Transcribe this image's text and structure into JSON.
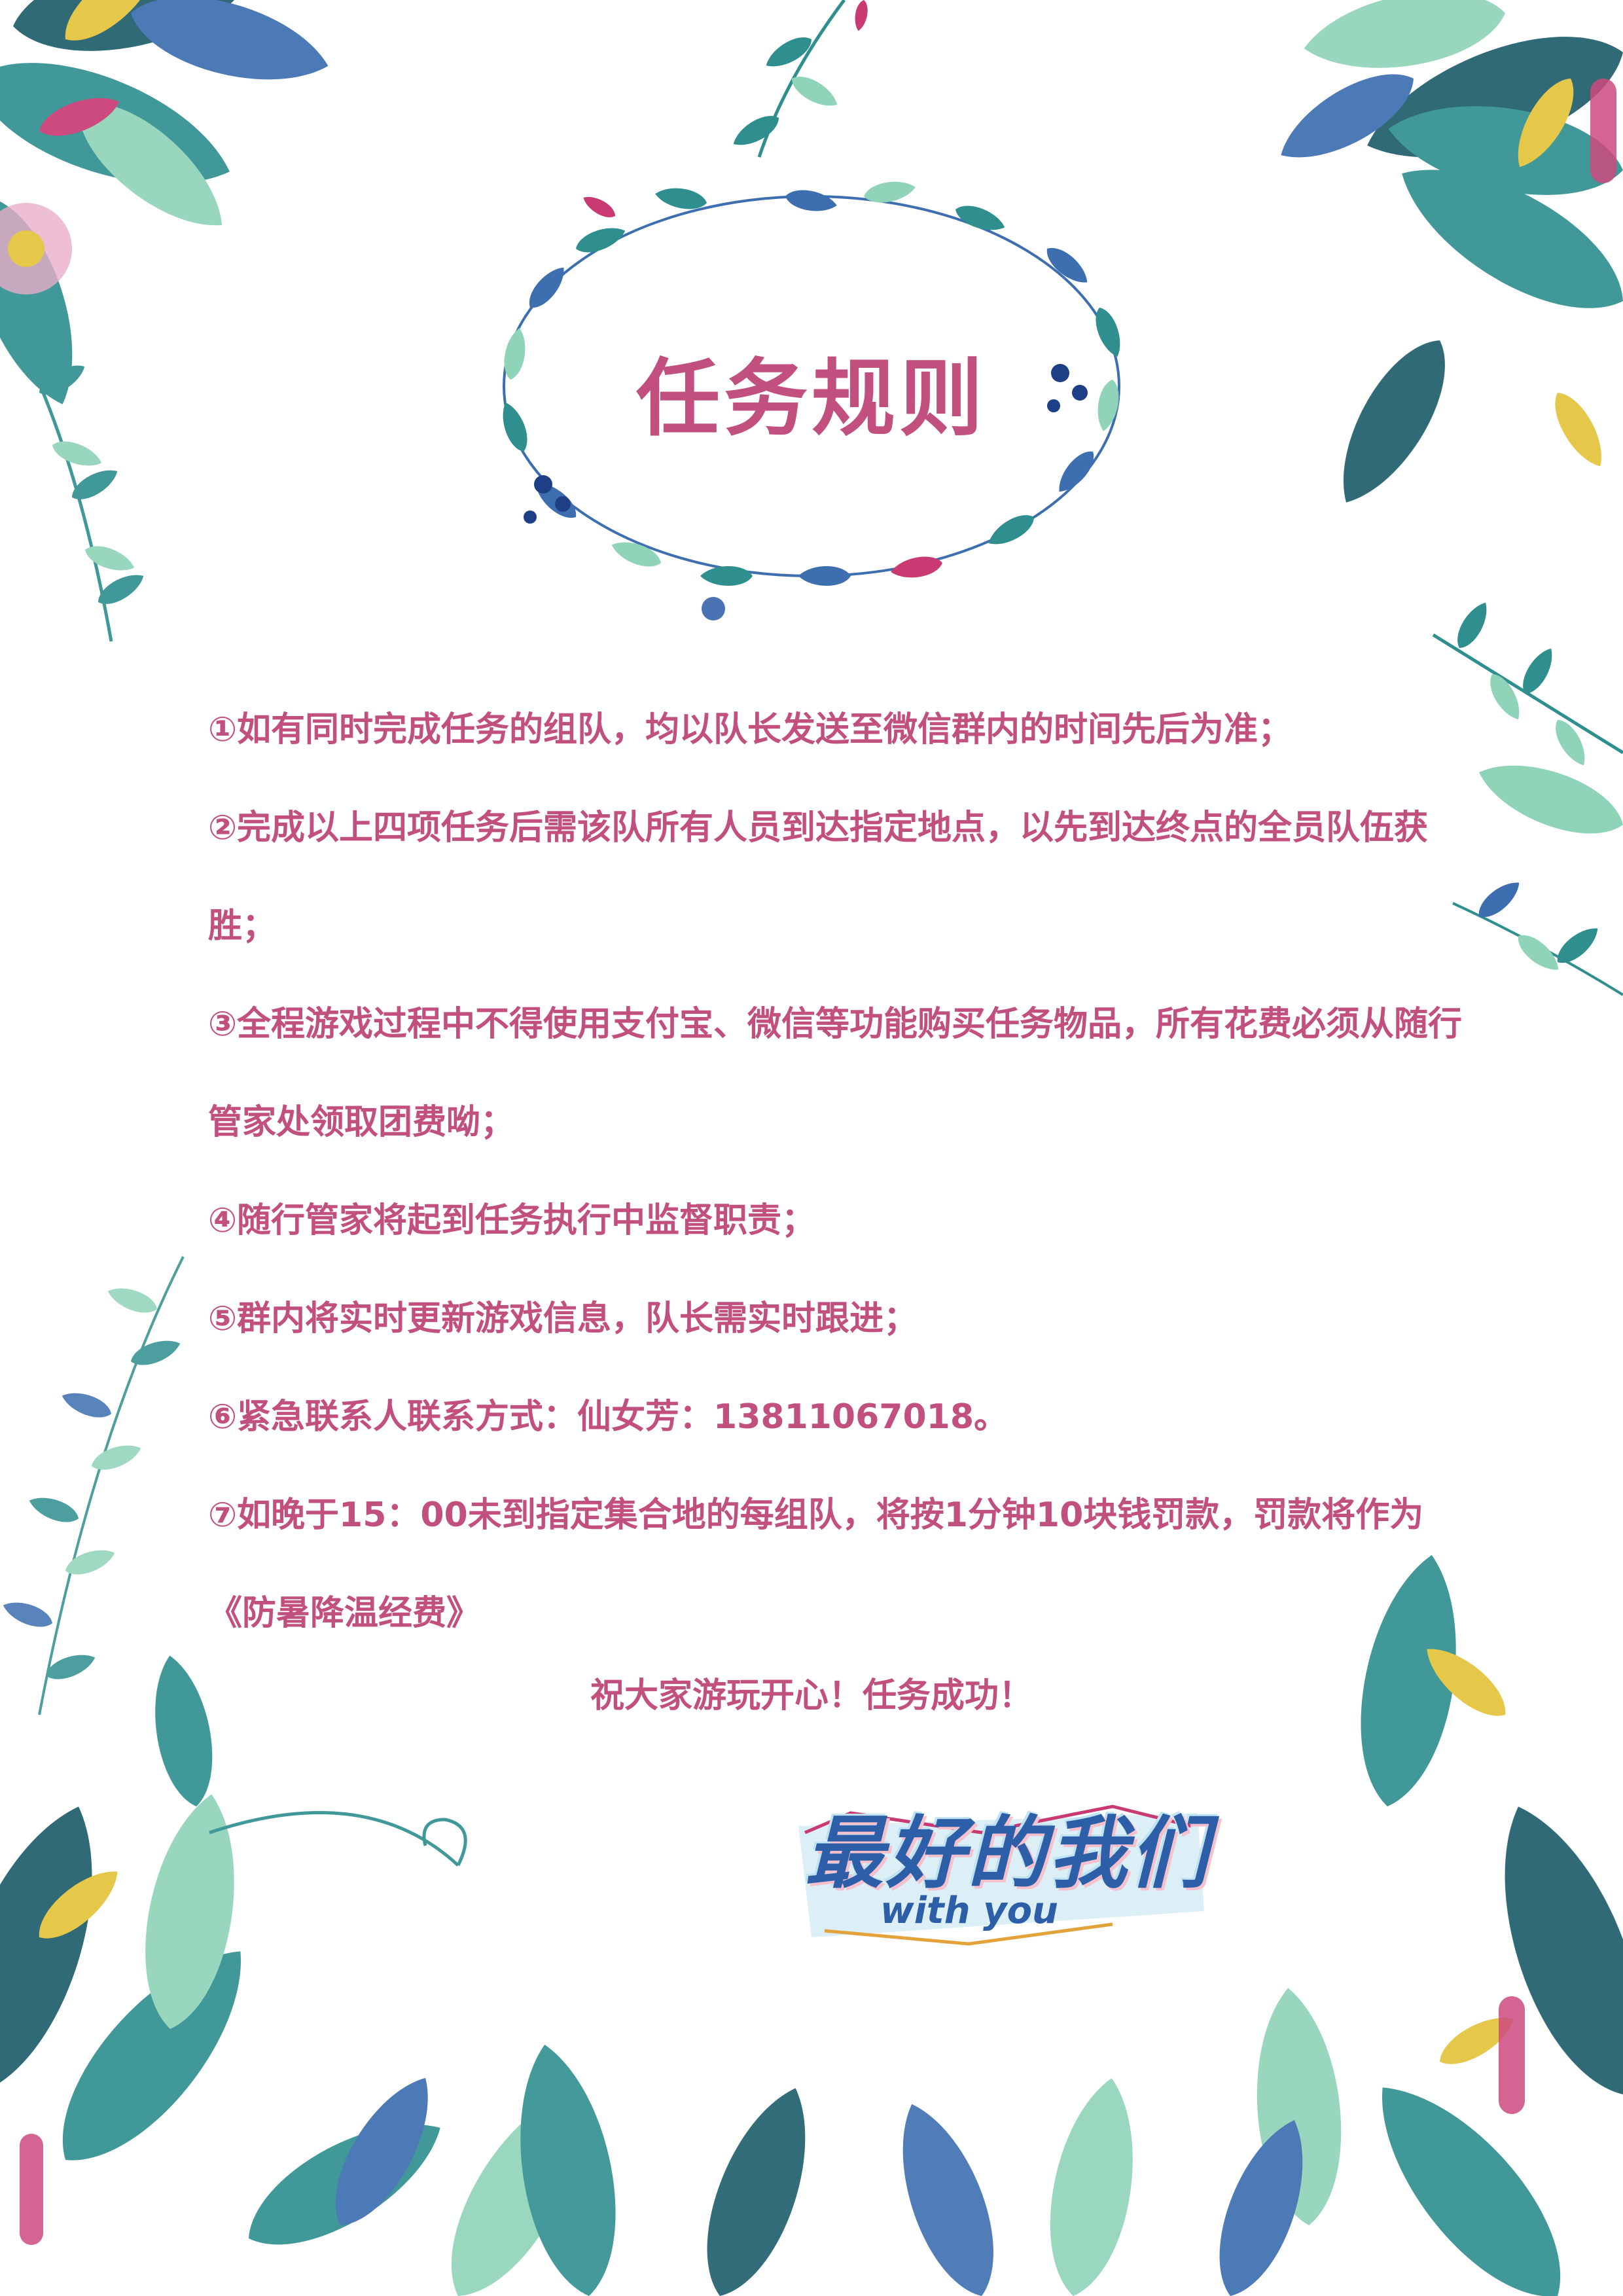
{
  "colors": {
    "text": "#c2507f",
    "leaf_teal": "#2f8f8f",
    "leaf_dark": "#1e5d6b",
    "leaf_light": "#8fd3b8",
    "wreath_blue": "#3d6fb0",
    "accent_yellow": "#e3c23a",
    "accent_pink": "#c93a73",
    "logo_blue": "#2d5fa8"
  },
  "title": "任务规则",
  "rules": [
    "①如有同时完成任务的组队，均以队长发送至微信群内的时间先后为准；",
    "②完成以上四项任务后需该队所有人员到达指定地点，以先到达终点的全员队伍获胜；",
    "③全程游戏过程中不得使用支付宝、微信等功能购买任务物品，所有花费必须从随行管家处领取团费呦；",
    "④随行管家将起到任务执行中监督职责；",
    "⑤群内将实时更新游戏信息，队长需实时跟进；",
    "⑥紧急联系人联系方式：仙女芳：13811067018。",
    "⑦如晚于15：00未到指定集合地的每组队，将按1分钟10块钱罚款，罚款将作为《防暑降温经费》"
  ],
  "closing": "祝大家游玩开心！任务成功！",
  "logo": {
    "title": "最好的我们",
    "subtitle": "with you"
  },
  "icons": {
    "wreath": "leaf-wreath-icon",
    "corners": "tropical-leaves-icon"
  }
}
